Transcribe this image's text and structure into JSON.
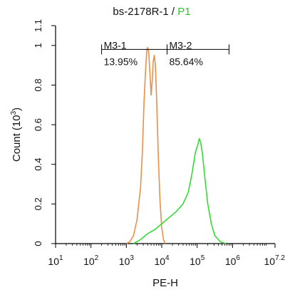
{
  "chart_data": {
    "type": "line",
    "title": {
      "prefix": "bs-2178R-1 / ",
      "highlight": "P1",
      "highlight_color": "#22cc22"
    },
    "xlabel": "PE-H",
    "ylabel": {
      "main": "Count",
      "paren_open": "(10",
      "exp": "3",
      "paren_close": ")"
    },
    "x_scale": "log10",
    "xlim": [
      1,
      7.2
    ],
    "ylim": [
      0,
      1.1
    ],
    "x_ticks": [
      {
        "base": "10",
        "exp": "1",
        "value": 1
      },
      {
        "base": "10",
        "exp": "2",
        "value": 2
      },
      {
        "base": "10",
        "exp": "3",
        "value": 3
      },
      {
        "base": "10",
        "exp": "4",
        "value": 4
      },
      {
        "base": "10",
        "exp": "5",
        "value": 5
      },
      {
        "base": "10",
        "exp": "6",
        "value": 6
      },
      {
        "base": "10",
        "exp": "7.2",
        "value": 7.2
      }
    ],
    "y_ticks": [
      "0",
      "0.2",
      "0.4",
      "0.6",
      "0.8",
      "1",
      "1.1"
    ],
    "y_tick_values": [
      0,
      0.2,
      0.4,
      0.6,
      0.8,
      1.0,
      1.1
    ],
    "series": [
      {
        "color": "#e8904a",
        "points": [
          [
            3.0,
            0.0
          ],
          [
            3.1,
            0.01
          ],
          [
            3.2,
            0.04
          ],
          [
            3.3,
            0.12
          ],
          [
            3.4,
            0.28
          ],
          [
            3.45,
            0.45
          ],
          [
            3.5,
            0.72
          ],
          [
            3.55,
            0.9
          ],
          [
            3.58,
            0.98
          ],
          [
            3.6,
            0.99
          ],
          [
            3.63,
            0.97
          ],
          [
            3.66,
            0.88
          ],
          [
            3.7,
            0.75
          ],
          [
            3.73,
            0.82
          ],
          [
            3.76,
            0.92
          ],
          [
            3.79,
            0.95
          ],
          [
            3.82,
            0.9
          ],
          [
            3.86,
            0.7
          ],
          [
            3.9,
            0.45
          ],
          [
            3.95,
            0.22
          ],
          [
            4.0,
            0.08
          ],
          [
            4.05,
            0.02
          ],
          [
            4.1,
            0.0
          ]
        ]
      },
      {
        "color": "#33dd33",
        "points": [
          [
            3.2,
            0.0
          ],
          [
            3.4,
            0.02
          ],
          [
            3.6,
            0.05
          ],
          [
            3.8,
            0.07
          ],
          [
            4.0,
            0.1
          ],
          [
            4.2,
            0.13
          ],
          [
            4.4,
            0.16
          ],
          [
            4.6,
            0.2
          ],
          [
            4.75,
            0.26
          ],
          [
            4.85,
            0.35
          ],
          [
            4.95,
            0.46
          ],
          [
            5.02,
            0.5
          ],
          [
            5.06,
            0.53
          ],
          [
            5.1,
            0.51
          ],
          [
            5.15,
            0.45
          ],
          [
            5.22,
            0.33
          ],
          [
            5.3,
            0.2
          ],
          [
            5.4,
            0.1
          ],
          [
            5.5,
            0.04
          ],
          [
            5.65,
            0.01
          ],
          [
            5.8,
            0.0
          ]
        ]
      }
    ],
    "markers": [
      {
        "name": "M3-1",
        "value": "13.95%",
        "start": 2.3,
        "end": 4.15
      },
      {
        "name": "M3-2",
        "value": "85.64%",
        "start": 4.15,
        "end": 5.9
      }
    ],
    "marker_y": 0.98
  }
}
